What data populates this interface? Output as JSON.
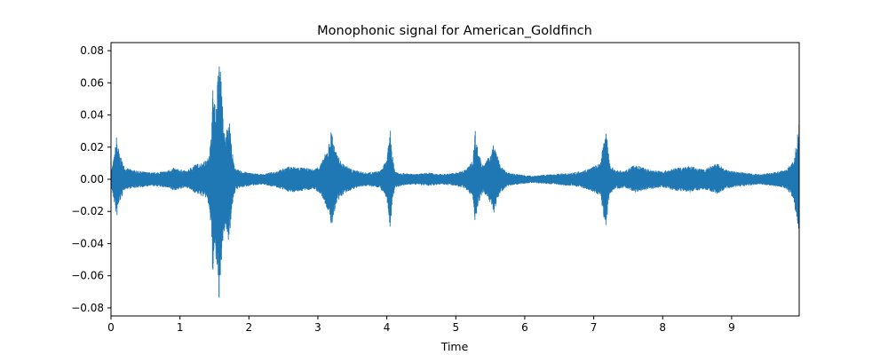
{
  "chart_data": {
    "type": "line",
    "title": "Monophonic signal for American_Goldfinch",
    "xlabel": "Time",
    "ylabel": "",
    "xlim": [
      0,
      9.98
    ],
    "ylim": [
      -0.085,
      0.085
    ],
    "x_ticks": [
      0,
      1,
      2,
      3,
      4,
      5,
      6,
      7,
      8,
      9
    ],
    "y_ticks": [
      -0.08,
      -0.06,
      -0.04,
      -0.02,
      0.0,
      0.02,
      0.04,
      0.06,
      0.08
    ],
    "y_tick_labels": [
      "−0.08",
      "−0.06",
      "−0.04",
      "−0.02",
      "0.00",
      "0.02",
      "0.04",
      "0.06",
      "0.08"
    ],
    "x_tick_labels": [
      "0",
      "1",
      "2",
      "3",
      "4",
      "5",
      "6",
      "7",
      "8",
      "9"
    ],
    "grid": false,
    "series": [
      {
        "color": "#1f77b4",
        "envelope": {
          "x": [
            0.0,
            0.05,
            0.08,
            0.12,
            0.2,
            0.4,
            0.6,
            0.8,
            0.9,
            1.0,
            1.1,
            1.2,
            1.3,
            1.4,
            1.45,
            1.48,
            1.5,
            1.52,
            1.55,
            1.58,
            1.6,
            1.63,
            1.66,
            1.7,
            1.73,
            1.75,
            1.78,
            1.82,
            1.9,
            2.0,
            2.2,
            2.4,
            2.6,
            2.8,
            2.95,
            3.05,
            3.15,
            3.2,
            3.25,
            3.35,
            3.5,
            3.7,
            3.9,
            4.0,
            4.05,
            4.08,
            4.12,
            4.2,
            4.4,
            4.6,
            4.8,
            5.0,
            5.15,
            5.25,
            5.28,
            5.32,
            5.4,
            5.48,
            5.55,
            5.6,
            5.65,
            5.75,
            5.9,
            6.1,
            6.4,
            6.7,
            6.9,
            7.1,
            7.18,
            7.2,
            7.23,
            7.3,
            7.45,
            7.6,
            7.8,
            8.0,
            8.2,
            8.4,
            8.6,
            8.8,
            8.9,
            9.0,
            9.2,
            9.4,
            9.6,
            9.8,
            9.9,
            9.95,
            9.98
          ],
          "pos": [
            0.004,
            0.015,
            0.027,
            0.016,
            0.007,
            0.005,
            0.004,
            0.005,
            0.007,
            0.006,
            0.005,
            0.009,
            0.01,
            0.012,
            0.025,
            0.06,
            0.05,
            0.04,
            0.066,
            0.078,
            0.06,
            0.035,
            0.025,
            0.04,
            0.033,
            0.02,
            0.01,
            0.006,
            0.005,
            0.004,
            0.003,
            0.005,
            0.008,
            0.007,
            0.006,
            0.01,
            0.02,
            0.032,
            0.018,
            0.01,
            0.006,
            0.004,
            0.005,
            0.012,
            0.032,
            0.015,
            0.005,
            0.004,
            0.003,
            0.004,
            0.003,
            0.004,
            0.006,
            0.012,
            0.032,
            0.018,
            0.008,
            0.014,
            0.022,
            0.015,
            0.008,
            0.004,
            0.003,
            0.002,
            0.003,
            0.004,
            0.006,
            0.01,
            0.035,
            0.022,
            0.01,
            0.006,
            0.005,
            0.009,
            0.006,
            0.005,
            0.007,
            0.008,
            0.006,
            0.01,
            0.006,
            0.005,
            0.004,
            0.003,
            0.004,
            0.006,
            0.012,
            0.025,
            0.038
          ],
          "neg": [
            -0.004,
            -0.015,
            -0.025,
            -0.015,
            -0.006,
            -0.005,
            -0.004,
            -0.005,
            -0.007,
            -0.006,
            -0.005,
            -0.008,
            -0.01,
            -0.012,
            -0.03,
            -0.065,
            -0.045,
            -0.05,
            -0.07,
            -0.078,
            -0.055,
            -0.035,
            -0.03,
            -0.038,
            -0.03,
            -0.02,
            -0.01,
            -0.006,
            -0.005,
            -0.004,
            -0.003,
            -0.005,
            -0.008,
            -0.007,
            -0.006,
            -0.01,
            -0.02,
            -0.03,
            -0.018,
            -0.01,
            -0.006,
            -0.004,
            -0.005,
            -0.012,
            -0.032,
            -0.015,
            -0.005,
            -0.004,
            -0.003,
            -0.004,
            -0.003,
            -0.004,
            -0.006,
            -0.012,
            -0.03,
            -0.016,
            -0.008,
            -0.012,
            -0.022,
            -0.013,
            -0.008,
            -0.004,
            -0.003,
            -0.002,
            -0.003,
            -0.004,
            -0.006,
            -0.01,
            -0.034,
            -0.02,
            -0.01,
            -0.006,
            -0.005,
            -0.008,
            -0.006,
            -0.005,
            -0.007,
            -0.008,
            -0.006,
            -0.009,
            -0.006,
            -0.005,
            -0.004,
            -0.003,
            -0.004,
            -0.006,
            -0.012,
            -0.028,
            -0.038
          ]
        }
      }
    ]
  }
}
